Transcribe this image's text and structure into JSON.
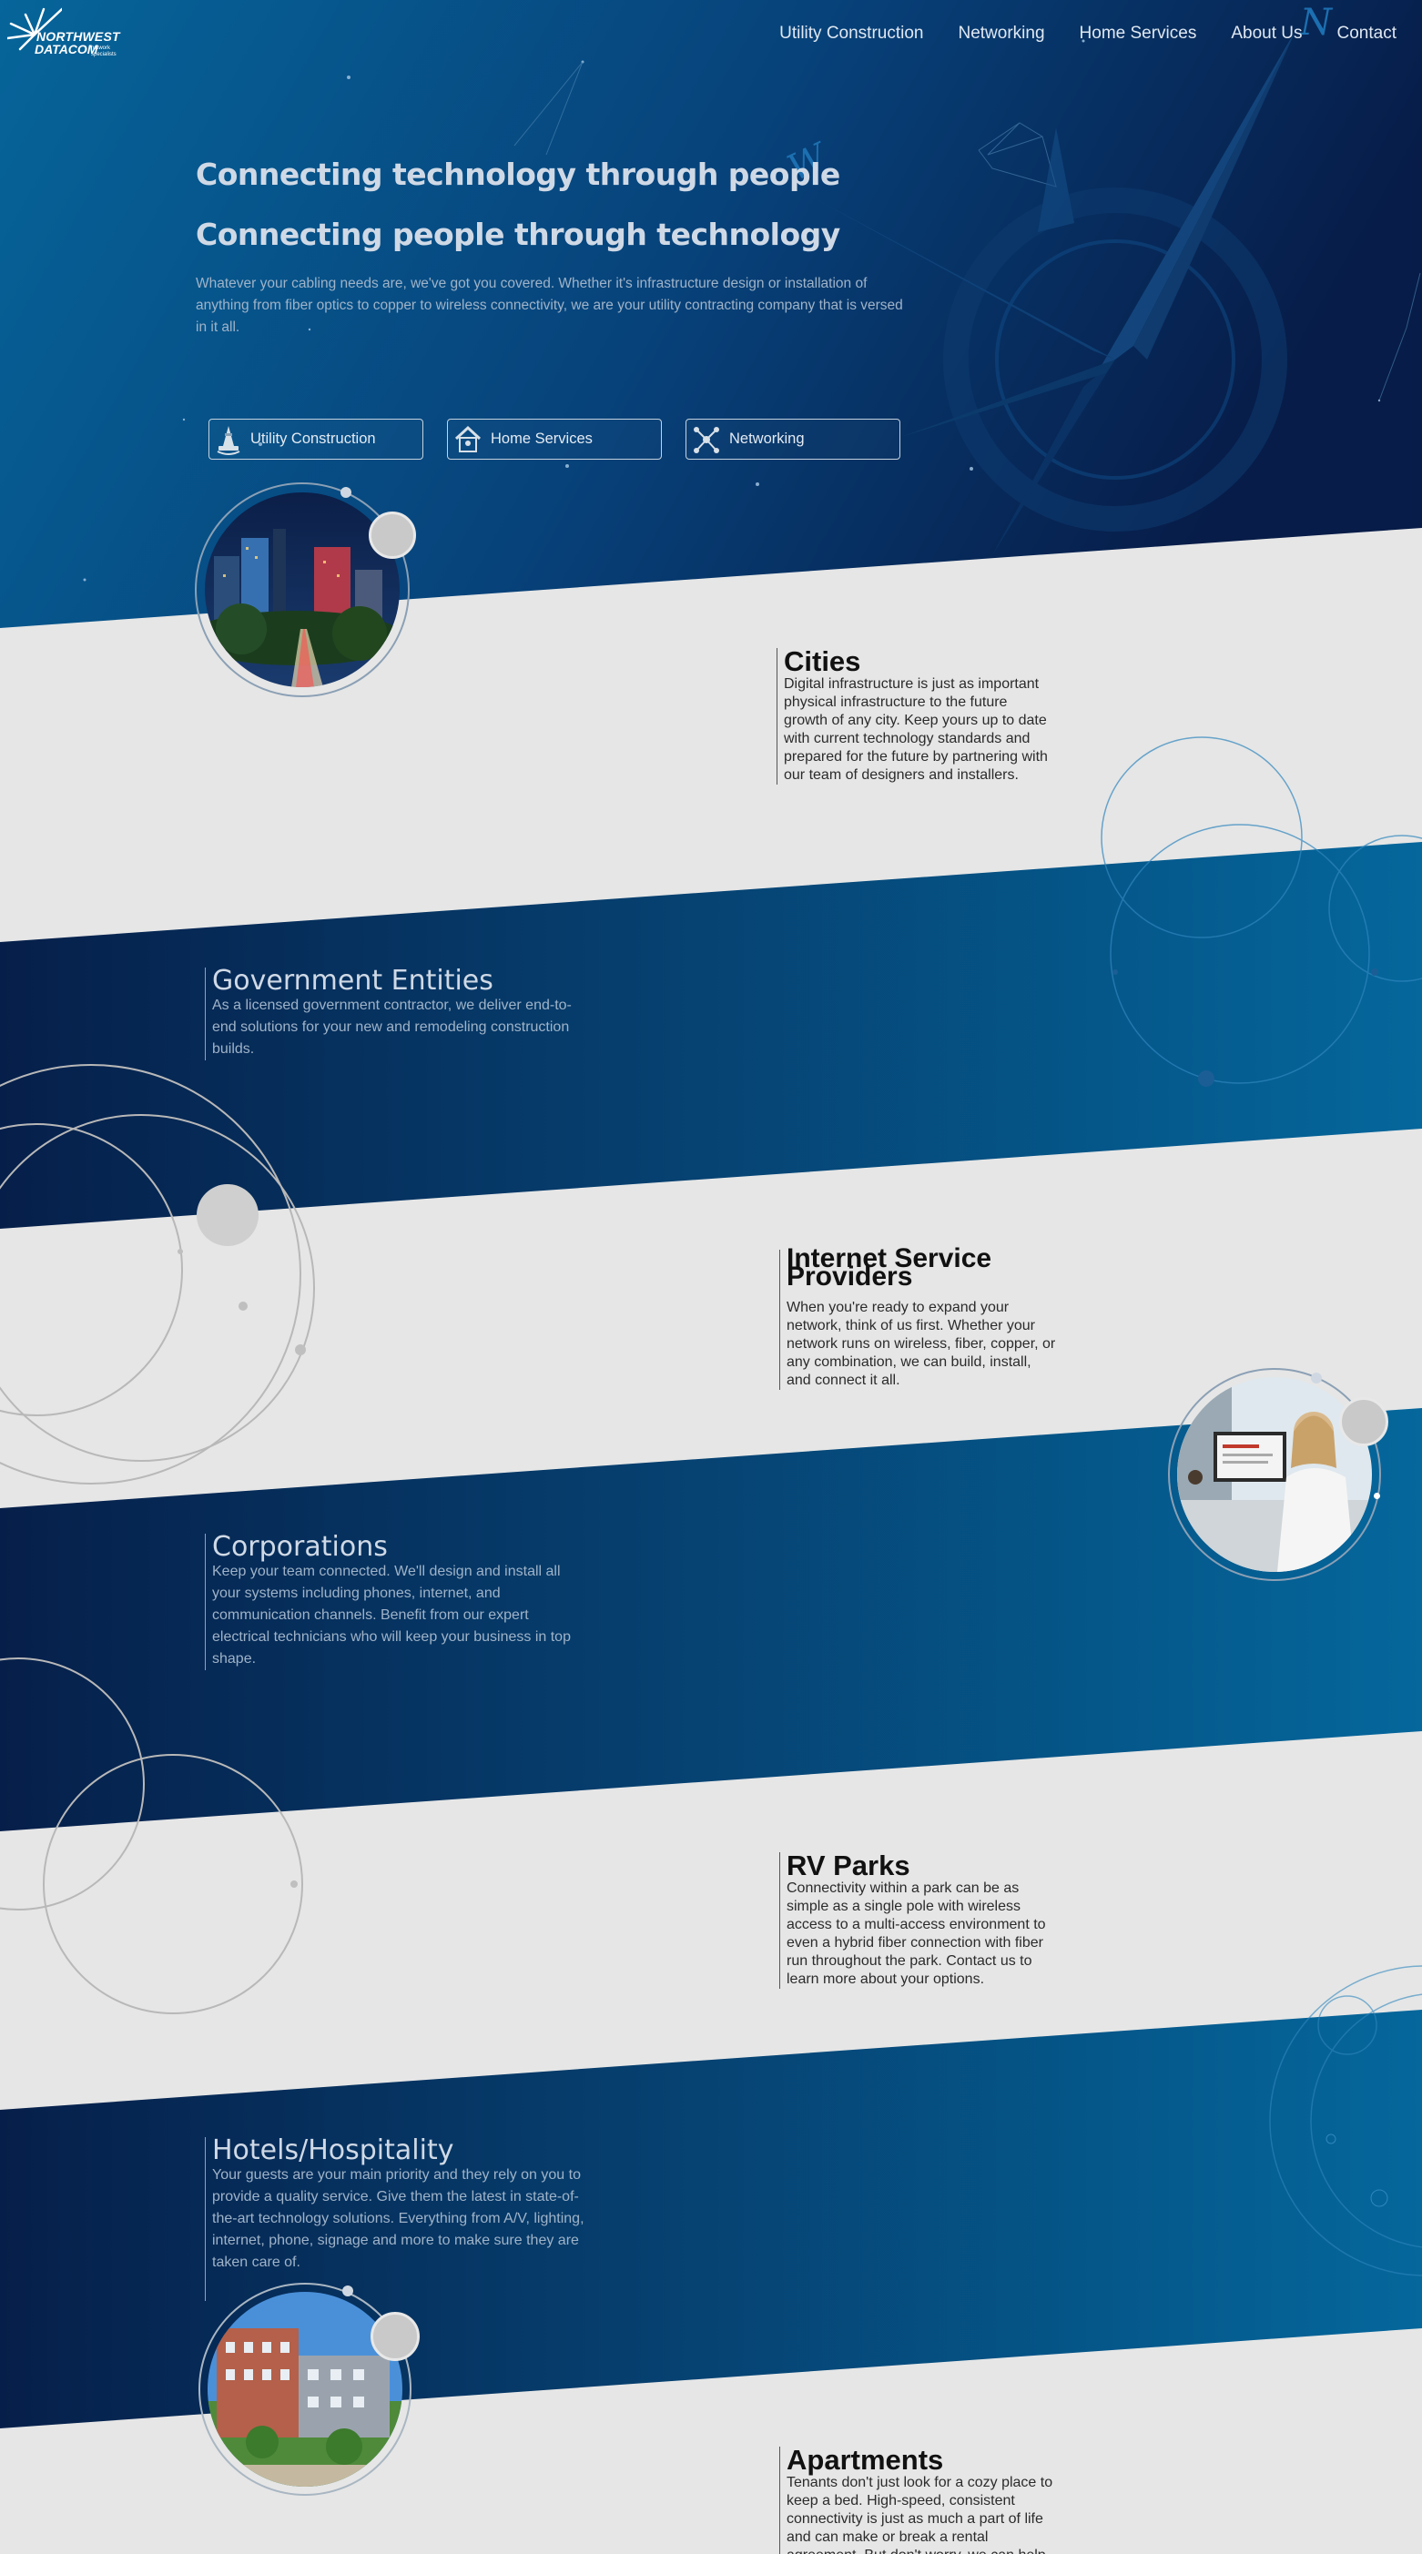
{
  "brand": {
    "name_line1": "NORTHWEST",
    "name_line2": "DATACOM",
    "tagline": "network specialists",
    "logo_icon": "starburst-logo-icon"
  },
  "nav": {
    "items": [
      {
        "label": "Utility Construction"
      },
      {
        "label": "Networking"
      },
      {
        "label": "Home Services"
      },
      {
        "label": "About Us"
      },
      {
        "label": "Contact"
      }
    ]
  },
  "hero": {
    "headline1": "Connecting technology through people",
    "headline2": "Connecting people through technology",
    "paragraph": "Whatever your cabling needs are, we've got you covered. Whether it's infrastructure design or installation of anything from fiber optics to copper to wireless connectivity, we are your utility contracting company that is versed in it all.",
    "compass_letters": [
      "N",
      "W"
    ]
  },
  "services": [
    {
      "label": "Utility Construction",
      "icon": "traffic-cone-icon"
    },
    {
      "label": "Home Services",
      "icon": "house-icon"
    },
    {
      "label": "Networking",
      "icon": "network-nodes-icon"
    }
  ],
  "sections": [
    {
      "title": "Cities",
      "text": "Digital infrastructure is just as important physical infrastructure to the future growth of any city. Keep yours up to date with current technology standards and prepared for the future by partnering with our team of designers and installers."
    },
    {
      "title": "Government Entities",
      "text": "As a licensed government contractor, we deliver end-to-end solutions for your new and remodeling construction builds."
    },
    {
      "title": "Internet Service Providers",
      "text": "When you're ready to expand your network, think of us first. Whether your network runs on wireless, fiber, copper, or any combination, we can build, install, and connect it all."
    },
    {
      "title": "Corporations",
      "text": "Keep your team connected. We'll design and install all your systems including phones, internet, and communication channels. Benefit from our expert electrical technicians who will keep your business in top shape."
    },
    {
      "title": "RV Parks",
      "text": "Connectivity within a park can be as simple as a single pole with wireless access to a multi-access environment to even a hybrid fiber connection with fiber run throughout the park. Contact us to learn more about your options."
    },
    {
      "title": "Hotels/Hospitality",
      "text": "Your guests are your main priority and they rely on you to provide a quality service. Give them the latest in state-of-the-art technology solutions. Everything from A/V, lighting, internet, phone, signage and more to make sure they are taken care of."
    },
    {
      "title": "Apartments",
      "text": "Tenants don't just look for a cozy place to keep a bed. High-speed, consistent connectivity is just as much a part of life and can make or break a rental agreement. But don't worry, we can help."
    }
  ],
  "colors": {
    "navy": "#0a2248",
    "blue": "#06659a",
    "light_band": "#e6e6e6",
    "hero_text": "#cfd9e6"
  }
}
